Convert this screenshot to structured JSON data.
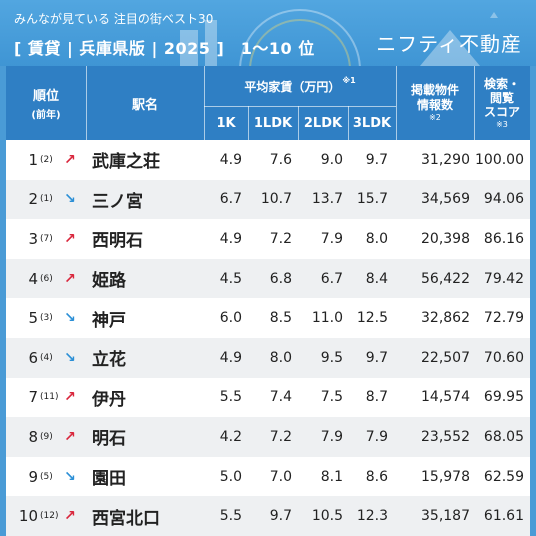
{
  "header": {
    "subtitle": "みんなが見ている 注目の街ベスト30",
    "title": "[ 賃貸 | 兵庫県版 | 2025 ]　1〜10 位",
    "brand": "ニフティ不動産"
  },
  "columns": {
    "rank": "順位",
    "rank_sub": "(前年)",
    "station": "駅名",
    "rent_group": "平均家賃（万円）",
    "rent_note": "※1",
    "k1": "1K",
    "ldk1": "1LDK",
    "ldk2": "2LDK",
    "ldk3": "3LDK",
    "posts": "掲載物件",
    "posts2": "情報数",
    "posts_note": "※2",
    "score": "検索・",
    "score2": "閲覧",
    "score3": "スコア",
    "score_note": "※3"
  },
  "colors": {
    "up": "#d9263c",
    "down": "#2b8fd6",
    "header_bg": "#2f7fc4"
  },
  "rows": [
    {
      "rank": "1",
      "prev": "(2)",
      "trend": "up",
      "station": "武庫之荘",
      "k1": "4.9",
      "ldk1": "7.6",
      "ldk2": "9.0",
      "ldk3": "9.7",
      "posts": "31,290",
      "score": "100.00"
    },
    {
      "rank": "2",
      "prev": "(1)",
      "trend": "down",
      "station": "三ノ宮",
      "k1": "6.7",
      "ldk1": "10.7",
      "ldk2": "13.7",
      "ldk3": "15.7",
      "posts": "34,569",
      "score": "94.06"
    },
    {
      "rank": "3",
      "prev": "(7)",
      "trend": "up",
      "station": "西明石",
      "k1": "4.9",
      "ldk1": "7.2",
      "ldk2": "7.9",
      "ldk3": "8.0",
      "posts": "20,398",
      "score": "86.16"
    },
    {
      "rank": "4",
      "prev": "(6)",
      "trend": "up",
      "station": "姫路",
      "k1": "4.5",
      "ldk1": "6.8",
      "ldk2": "6.7",
      "ldk3": "8.4",
      "posts": "56,422",
      "score": "79.42"
    },
    {
      "rank": "5",
      "prev": "(3)",
      "trend": "down",
      "station": "神戸",
      "k1": "6.0",
      "ldk1": "8.5",
      "ldk2": "11.0",
      "ldk3": "12.5",
      "posts": "32,862",
      "score": "72.79"
    },
    {
      "rank": "6",
      "prev": "(4)",
      "trend": "down",
      "station": "立花",
      "k1": "4.9",
      "ldk1": "8.0",
      "ldk2": "9.5",
      "ldk3": "9.7",
      "posts": "22,507",
      "score": "70.60"
    },
    {
      "rank": "7",
      "prev": "(11)",
      "trend": "up",
      "station": "伊丹",
      "k1": "5.5",
      "ldk1": "7.4",
      "ldk2": "7.5",
      "ldk3": "8.7",
      "posts": "14,574",
      "score": "69.95"
    },
    {
      "rank": "8",
      "prev": "(9)",
      "trend": "up",
      "station": "明石",
      "k1": "4.2",
      "ldk1": "7.2",
      "ldk2": "7.9",
      "ldk3": "7.9",
      "posts": "23,552",
      "score": "68.05"
    },
    {
      "rank": "9",
      "prev": "(5)",
      "trend": "down",
      "station": "園田",
      "k1": "5.0",
      "ldk1": "7.0",
      "ldk2": "8.1",
      "ldk3": "8.6",
      "posts": "15,978",
      "score": "62.59"
    },
    {
      "rank": "10",
      "prev": "(12)",
      "trend": "up",
      "station": "西宮北口",
      "k1": "5.5",
      "ldk1": "9.7",
      "ldk2": "10.5",
      "ldk3": "12.3",
      "posts": "35,187",
      "score": "61.61"
    }
  ]
}
